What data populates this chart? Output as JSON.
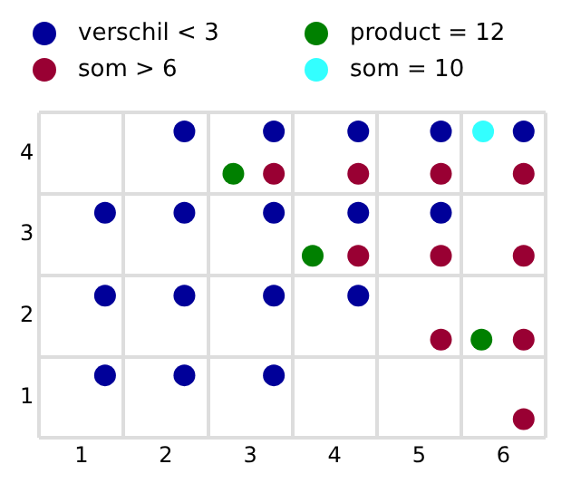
{
  "chart_data": {
    "type": "scatter",
    "legend": "top",
    "grid": true,
    "marker": "circle",
    "xlim": [
      0.5,
      6.5
    ],
    "ylim": [
      0.5,
      4.5
    ],
    "xticks": [
      {
        "value": 0.5,
        "label": null
      },
      1,
      {
        "value": 1.5,
        "label": null
      },
      2,
      {
        "value": 2.5,
        "label": null
      },
      3,
      {
        "value": 3.5,
        "label": null
      },
      4,
      {
        "value": 4.5,
        "label": null
      },
      5,
      {
        "value": 5.5,
        "label": null
      },
      6,
      {
        "value": 6.5,
        "label": null
      }
    ],
    "yticks": [
      {
        "value": 0.5,
        "label": null
      },
      1,
      {
        "value": 1.5,
        "label": null
      },
      2,
      {
        "value": 2.5,
        "label": null
      },
      3,
      {
        "value": 3.5,
        "label": null
      },
      4,
      {
        "value": 4.5,
        "label": null
      }
    ],
    "series": [
      {
        "name": "verschil < 3",
        "color": "#000099",
        "x": [
          2.22,
          3.28,
          4.28,
          5.26,
          6.24,
          1.28,
          2.22,
          3.28,
          4.28,
          5.26,
          1.28,
          2.22,
          3.28,
          4.28,
          1.28,
          2.22,
          3.28
        ],
        "values": [
          4.27,
          4.27,
          4.27,
          4.27,
          4.27,
          3.27,
          3.27,
          3.27,
          3.27,
          3.27,
          2.25,
          2.25,
          2.25,
          2.25,
          1.27,
          1.27,
          1.27
        ]
      },
      {
        "name": "som > 6",
        "color": "#990033",
        "x": [
          3.28,
          4.28,
          5.26,
          6.24,
          4.28,
          5.26,
          6.24,
          5.26,
          6.24,
          6.24
        ],
        "values": [
          3.75,
          3.75,
          3.75,
          3.75,
          2.74,
          2.74,
          2.74,
          1.71,
          1.71,
          0.73
        ]
      },
      {
        "name": "product = 12",
        "color": "#008000",
        "x": [
          2.8,
          3.74,
          5.74
        ],
        "values": [
          3.75,
          2.74,
          1.71
        ]
      },
      {
        "name": "som = 10",
        "color": "#33ffff",
        "x": [
          5.76
        ],
        "values": [
          4.27
        ]
      }
    ]
  }
}
